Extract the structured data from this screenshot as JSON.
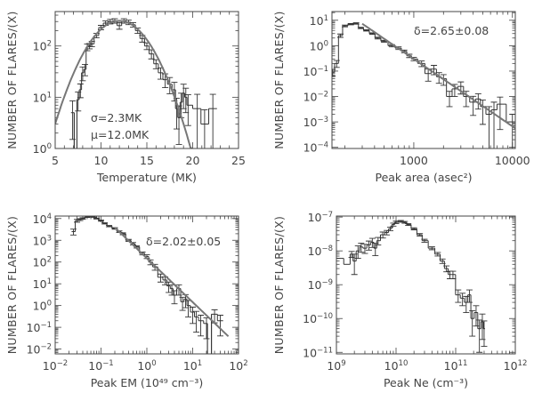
{
  "chart_data": [
    {
      "type": "histogram",
      "panel": "top-left",
      "xlabel": "Temperature (MK)",
      "ylabel": "NUMBER OF FLARES/(X)",
      "xscale": "linear",
      "yscale": "log",
      "xlim": [
        5,
        25
      ],
      "ylim": [
        1,
        470
      ],
      "x_ticks": [
        5,
        10,
        15,
        20,
        25
      ],
      "x_tick_labels": [
        "5",
        "10",
        "15",
        "20",
        "25"
      ],
      "y_ticks": [
        1,
        10,
        100
      ],
      "y_tick_labels": [
        "10^0",
        "10^1",
        "10^2"
      ],
      "annotations": [
        "σ=2.3MK",
        "μ=12.0MK"
      ],
      "fit": {
        "type": "gaussian",
        "mu": 12.0,
        "sigma": 2.3,
        "amplitude": 310,
        "range": [
          5,
          20
        ]
      },
      "points_x_y_relerr": [
        [
          6.9,
          5,
          0.7
        ],
        [
          7.25,
          0.5,
          1
        ],
        [
          7.5,
          9,
          0.4
        ],
        [
          7.75,
          14,
          0.3
        ],
        [
          8.0,
          30,
          0.3
        ],
        [
          8.25,
          35,
          0.25
        ],
        [
          8.5,
          95,
          0.15
        ],
        [
          8.75,
          100,
          0.12
        ],
        [
          9.0,
          110,
          0.12
        ],
        [
          9.5,
          160,
          0.1
        ],
        [
          10,
          230,
          0.1
        ],
        [
          10.5,
          280,
          0.1
        ],
        [
          11,
          300,
          0.1
        ],
        [
          11.5,
          310,
          0.1
        ],
        [
          12,
          250,
          0.15
        ],
        [
          12.5,
          310,
          0.1
        ],
        [
          13,
          290,
          0.1
        ],
        [
          13.5,
          260,
          0.1
        ],
        [
          14,
          200,
          0.12
        ],
        [
          14.5,
          140,
          0.15
        ],
        [
          15,
          100,
          0.15
        ],
        [
          15.5,
          70,
          0.2
        ],
        [
          16,
          45,
          0.2
        ],
        [
          16.5,
          30,
          0.25
        ],
        [
          17,
          22,
          0.3
        ],
        [
          17.5,
          18,
          0.35
        ],
        [
          18,
          14,
          0.4
        ],
        [
          18.25,
          6,
          0.6
        ],
        [
          18.5,
          4,
          0.7
        ],
        [
          18.75,
          8,
          0.5
        ],
        [
          19,
          12,
          0.5
        ],
        [
          19.25,
          10,
          0.5
        ],
        [
          19.5,
          7,
          0.6
        ],
        [
          20.5,
          6,
          0.9
        ],
        [
          21.3,
          3,
          0.9
        ],
        [
          22.2,
          6,
          0.9
        ]
      ]
    },
    {
      "type": "histogram",
      "panel": "top-right",
      "xlabel": "Peak area (asec²)",
      "ylabel": "NUMBER OF FLARES/(X)",
      "xscale": "log",
      "yscale": "log",
      "xlim": [
        148,
        10700
      ],
      "ylim": [
        9e-05,
        22
      ],
      "x_ticks": [
        1000,
        10000
      ],
      "x_tick_labels": [
        "1000",
        "10000"
      ],
      "y_ticks": [
        0.0001,
        0.001,
        0.01,
        0.1,
        1,
        10
      ],
      "y_tick_labels": [
        "10^-4",
        "10^-3",
        "10^-2",
        "10^-1",
        "10^0",
        "10^1"
      ],
      "annotations": [
        "δ=2.65±0.08"
      ],
      "fit": {
        "type": "power-law",
        "delta": 2.65,
        "y_at_1000": 0.3,
        "range": [
          300,
          10700
        ]
      },
      "points_x_y_relerr": [
        [
          150,
          0.09,
          0.3
        ],
        [
          165,
          0.2,
          0.3
        ],
        [
          180,
          2.5,
          0.15
        ],
        [
          200,
          6,
          0.08
        ],
        [
          230,
          7,
          0.06
        ],
        [
          260,
          7.5,
          0.06
        ],
        [
          290,
          5,
          0.06
        ],
        [
          330,
          4,
          0.06
        ],
        [
          380,
          3,
          0.07
        ],
        [
          430,
          2,
          0.08
        ],
        [
          500,
          1.5,
          0.08
        ],
        [
          600,
          1,
          0.1
        ],
        [
          700,
          0.8,
          0.12
        ],
        [
          800,
          0.6,
          0.12
        ],
        [
          900,
          0.4,
          0.15
        ],
        [
          1000,
          0.3,
          0.15
        ],
        [
          1200,
          0.2,
          0.25
        ],
        [
          1400,
          0.08,
          0.5
        ],
        [
          1600,
          0.12,
          0.4
        ],
        [
          1800,
          0.06,
          0.45
        ],
        [
          2000,
          0.05,
          0.45
        ],
        [
          2300,
          0.01,
          0.6
        ],
        [
          2600,
          0.02,
          0.5
        ],
        [
          3000,
          0.025,
          0.5
        ],
        [
          3400,
          0.01,
          0.6
        ],
        [
          4000,
          0.006,
          0.7
        ],
        [
          4500,
          0.008,
          0.6
        ],
        [
          5000,
          0.004,
          0.8
        ],
        [
          5800,
          0.002,
          1
        ],
        [
          6500,
          0.003,
          1
        ],
        [
          7500,
          0.005,
          0.9
        ],
        [
          10000,
          0.001,
          1
        ]
      ]
    },
    {
      "type": "histogram",
      "panel": "bottom-left",
      "xlabel": "Peak EM (10⁴⁹ cm⁻³)",
      "ylabel": "NUMBER OF FLARES/(X)",
      "xscale": "log",
      "yscale": "log",
      "xlim": [
        0.01,
        100
      ],
      "ylim": [
        0.006,
        13000
      ],
      "x_ticks": [
        0.01,
        0.1,
        1,
        10,
        100
      ],
      "x_tick_labels": [
        "10^-2",
        "10^-1",
        "10^0",
        "10^1",
        "10^2"
      ],
      "y_ticks": [
        0.01,
        0.1,
        1,
        10,
        100,
        1000,
        10000
      ],
      "y_tick_labels": [
        "10^-2",
        "10^-1",
        "10^0",
        "10^1",
        "10^2",
        "10^3",
        "10^4"
      ],
      "annotations": [
        "δ=2.02±0.05"
      ],
      "fit": {
        "type": "power-law",
        "delta": 2.02,
        "y_at_1": 150,
        "range": [
          0.2,
          60
        ]
      },
      "points_x_y_relerr": [
        [
          0.025,
          2500,
          0.3
        ],
        [
          0.03,
          8000,
          0.15
        ],
        [
          0.035,
          9000,
          0.1
        ],
        [
          0.04,
          10000,
          0.08
        ],
        [
          0.05,
          12000,
          0.06
        ],
        [
          0.06,
          13000,
          0.05
        ],
        [
          0.07,
          12000,
          0.05
        ],
        [
          0.08,
          10000,
          0.05
        ],
        [
          0.1,
          8000,
          0.06
        ],
        [
          0.12,
          6000,
          0.06
        ],
        [
          0.15,
          4500,
          0.07
        ],
        [
          0.2,
          3500,
          0.08
        ],
        [
          0.25,
          2500,
          0.08
        ],
        [
          0.3,
          2000,
          0.1
        ],
        [
          0.4,
          1000,
          0.1
        ],
        [
          0.5,
          700,
          0.12
        ],
        [
          0.6,
          500,
          0.12
        ],
        [
          0.8,
          250,
          0.15
        ],
        [
          1,
          180,
          0.2
        ],
        [
          1.2,
          100,
          0.25
        ],
        [
          1.5,
          60,
          0.3
        ],
        [
          2,
          20,
          0.4
        ],
        [
          2.5,
          15,
          0.4
        ],
        [
          3,
          8,
          0.5
        ],
        [
          3.5,
          6,
          0.5
        ],
        [
          4,
          3,
          0.6
        ],
        [
          5,
          6,
          0.5
        ],
        [
          6,
          1.5,
          0.6
        ],
        [
          7,
          2,
          0.6
        ],
        [
          8,
          1,
          0.7
        ],
        [
          10,
          0.5,
          0.7
        ],
        [
          12,
          0.3,
          0.8
        ],
        [
          15,
          0.2,
          0.8
        ],
        [
          20,
          0.15,
          0.8
        ],
        [
          22,
          0.001,
          1
        ],
        [
          30,
          0.4,
          0.6
        ],
        [
          40,
          0.2,
          0.8
        ]
      ]
    },
    {
      "type": "histogram",
      "panel": "bottom-right",
      "xlabel": "Peak Ne (cm⁻³)",
      "ylabel": "NUMBER OF FLARES/(X)",
      "xscale": "log",
      "yscale": "log",
      "xlim": [
        1000000000.0,
        1000000000000.0
      ],
      "ylim": [
        9e-12,
        1.07e-07
      ],
      "x_ticks": [
        1000000000.0,
        10000000000.0,
        100000000000.0,
        1000000000000.0
      ],
      "x_tick_labels": [
        "10^9",
        "10^10",
        "10^11",
        "10^12"
      ],
      "y_ticks": [
        1e-11,
        1e-10,
        1e-09,
        1e-08,
        1e-07
      ],
      "y_tick_labels": [
        "10^-11",
        "10^-10",
        "10^-9",
        "10^-8",
        "10^-7"
      ],
      "annotations": [],
      "fit": null,
      "points_x_y_relerr": [
        [
          1100000000.0,
          6e-09,
          0
        ],
        [
          1600000000.0,
          4e-09,
          0
        ],
        [
          1800000000.0,
          8e-09,
          0.2
        ],
        [
          2000000000.0,
          5e-09,
          0.6
        ],
        [
          2300000000.0,
          1e-08,
          0.4
        ],
        [
          2600000000.0,
          1.3e-08,
          0.3
        ],
        [
          3000000000.0,
          1.2e-08,
          0.3
        ],
        [
          3500000000.0,
          1.5e-08,
          0.3
        ],
        [
          4000000000.0,
          1.8e-08,
          0.3
        ],
        [
          4500000000.0,
          1.2e-08,
          0.4
        ],
        [
          5000000000.0,
          2e-08,
          0.25
        ],
        [
          6000000000.0,
          3e-08,
          0.2
        ],
        [
          7000000000.0,
          3.5e-08,
          0.15
        ],
        [
          8000000000.0,
          4.5e-08,
          0.12
        ],
        [
          9000000000.0,
          6e-08,
          0.1
        ],
        [
          10000000000.0,
          7e-08,
          0.08
        ],
        [
          12000000000.0,
          7.5e-08,
          0.06
        ],
        [
          14000000000.0,
          7e-08,
          0.06
        ],
        [
          16000000000.0,
          6e-08,
          0.06
        ],
        [
          20000000000.0,
          4.5e-08,
          0.07
        ],
        [
          25000000000.0,
          3e-08,
          0.08
        ],
        [
          30000000000.0,
          2e-08,
          0.1
        ],
        [
          40000000000.0,
          1.2e-08,
          0.1
        ],
        [
          50000000000.0,
          8e-09,
          0.12
        ],
        [
          60000000000.0,
          5e-09,
          0.15
        ],
        [
          70000000000.0,
          3e-09,
          0.2
        ],
        [
          80000000000.0,
          2e-09,
          0.25
        ],
        [
          90000000000.0,
          2e-09,
          0.25
        ],
        [
          110000000000.0,
          5e-10,
          0.4
        ],
        [
          130000000000.0,
          4e-10,
          0.4
        ],
        [
          150000000000.0,
          3e-10,
          0.5
        ],
        [
          170000000000.0,
          5e-10,
          0.4
        ],
        [
          190000000000.0,
          1e-10,
          0.7
        ],
        [
          220000000000.0,
          1.5e-10,
          0.6
        ],
        [
          250000000000.0,
          5e-11,
          0.8
        ],
        [
          280000000000.0,
          8e-11,
          0.7
        ],
        [
          300000000000.0,
          5e-11,
          0.7
        ]
      ]
    }
  ]
}
